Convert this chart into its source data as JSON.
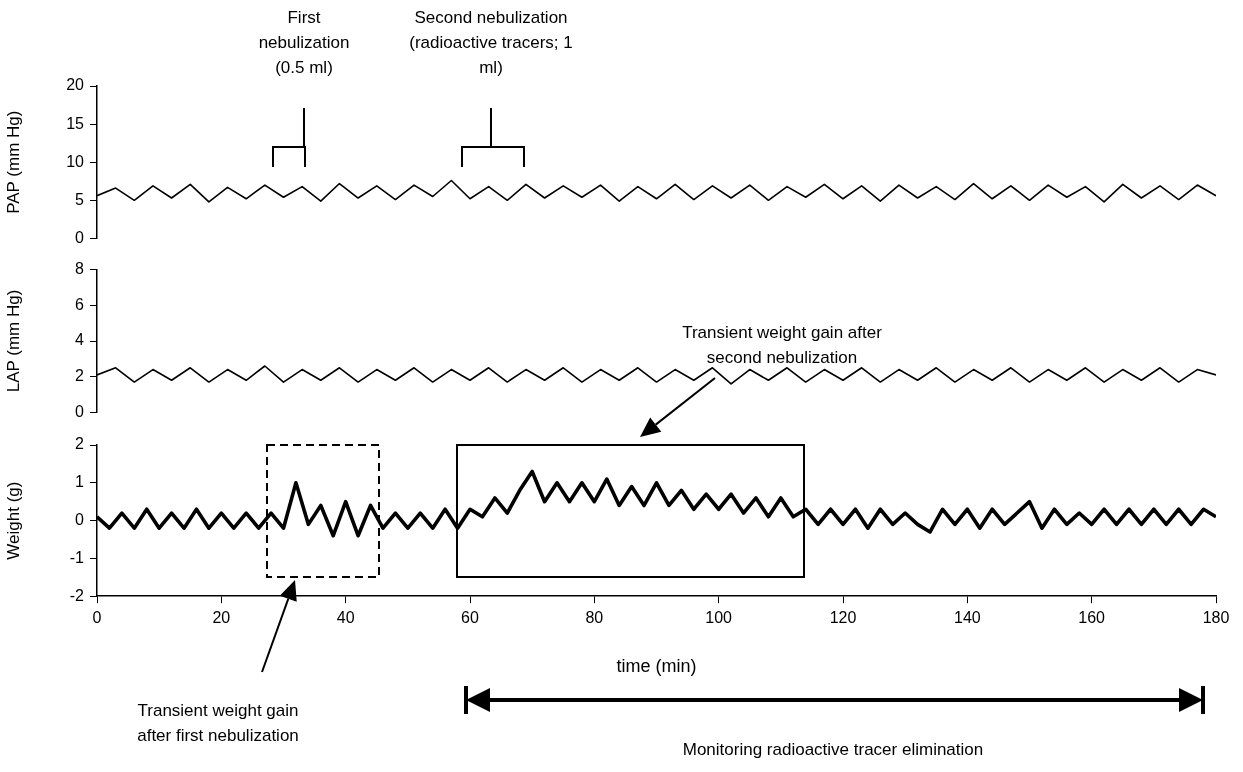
{
  "chart_data": [
    {
      "type": "line",
      "ylabel": "PAP (mm Hg)",
      "xlim": [
        0,
        180
      ],
      "ylim": [
        0,
        20
      ],
      "yticks": [
        0,
        5,
        10,
        15,
        20
      ],
      "tick_labels": "y",
      "marker": "none",
      "line_style": "solid",
      "legend": false,
      "annotations": [
        "First nebulization (0.5 ml)",
        "Second nebulization (radioactive tracers; 1 ml)"
      ],
      "x": [
        0,
        3,
        6,
        9,
        12,
        15,
        18,
        21,
        24,
        27,
        30,
        33,
        36,
        39,
        42,
        45,
        48,
        51,
        54,
        57,
        60,
        63,
        66,
        69,
        72,
        75,
        78,
        81,
        84,
        87,
        90,
        93,
        96,
        99,
        102,
        105,
        108,
        111,
        114,
        117,
        120,
        123,
        126,
        129,
        132,
        135,
        138,
        141,
        144,
        147,
        150,
        153,
        156,
        159,
        162,
        165,
        168,
        171,
        174,
        177,
        180
      ],
      "series": [
        {
          "color": "#000000",
          "values": [
            5.6,
            6.6,
            5.0,
            6.9,
            5.3,
            7.1,
            4.8,
            6.7,
            5.2,
            7.0,
            5.4,
            6.8,
            4.9,
            7.2,
            5.3,
            6.9,
            5.1,
            7.0,
            5.5,
            7.6,
            5.2,
            6.8,
            5.0,
            7.1,
            5.3,
            6.9,
            5.4,
            7.0,
            4.9,
            6.8,
            5.2,
            7.1,
            5.1,
            6.9,
            5.3,
            7.0,
            5.0,
            6.8,
            5.4,
            7.1,
            5.2,
            6.9,
            4.9,
            7.0,
            5.3,
            6.8,
            5.1,
            7.2,
            5.2,
            6.9,
            5.0,
            7.0,
            5.4,
            6.8,
            4.8,
            7.1,
            5.3,
            6.9,
            5.1,
            7.0,
            5.6
          ]
        }
      ]
    },
    {
      "type": "line",
      "ylabel": "LAP (mm Hg)",
      "xlim": [
        0,
        180
      ],
      "ylim": [
        0,
        8
      ],
      "yticks": [
        0,
        2,
        4,
        6,
        8
      ],
      "tick_labels": "y",
      "marker": "none",
      "line_style": "solid",
      "legend": false,
      "x": [
        0,
        3,
        6,
        9,
        12,
        15,
        18,
        21,
        24,
        27,
        30,
        33,
        36,
        39,
        42,
        45,
        48,
        51,
        54,
        57,
        60,
        63,
        66,
        69,
        72,
        75,
        78,
        81,
        84,
        87,
        90,
        93,
        96,
        99,
        102,
        105,
        108,
        111,
        114,
        117,
        120,
        123,
        126,
        129,
        132,
        135,
        138,
        141,
        144,
        147,
        150,
        153,
        156,
        159,
        162,
        165,
        168,
        171,
        174,
        177,
        180
      ],
      "series": [
        {
          "color": "#000000",
          "values": [
            2.1,
            2.5,
            1.7,
            2.4,
            1.8,
            2.5,
            1.7,
            2.4,
            1.8,
            2.6,
            1.7,
            2.4,
            1.8,
            2.5,
            1.7,
            2.4,
            1.8,
            2.5,
            1.7,
            2.4,
            1.8,
            2.5,
            1.7,
            2.4,
            1.8,
            2.5,
            1.7,
            2.4,
            1.8,
            2.5,
            1.7,
            2.4,
            1.8,
            2.5,
            1.6,
            2.4,
            1.8,
            2.5,
            1.7,
            2.4,
            1.8,
            2.5,
            1.7,
            2.4,
            1.8,
            2.5,
            1.7,
            2.4,
            1.8,
            2.5,
            1.7,
            2.4,
            1.8,
            2.5,
            1.7,
            2.4,
            1.8,
            2.5,
            1.7,
            2.4,
            2.1
          ]
        }
      ]
    },
    {
      "type": "line",
      "ylabel": "Weight (g)",
      "xlabel": "time (min)",
      "xlim": [
        0,
        180
      ],
      "xticks": [
        0,
        20,
        40,
        60,
        80,
        100,
        120,
        140,
        160,
        180
      ],
      "ylim": [
        -2,
        2
      ],
      "yticks": [
        -2,
        -1,
        0,
        1,
        2
      ],
      "marker": "none",
      "line_style": "solid",
      "legend": false,
      "annotations": [
        "Transient weight gain after first nebulization",
        "Transient weight gain after second nebulization",
        "Monitoring radioactive tracer elimination"
      ],
      "x": [
        0,
        2,
        4,
        6,
        8,
        10,
        12,
        14,
        16,
        18,
        20,
        22,
        24,
        26,
        28,
        30,
        32,
        34,
        36,
        38,
        40,
        42,
        44,
        46,
        48,
        50,
        52,
        54,
        56,
        58,
        60,
        62,
        64,
        66,
        68,
        70,
        72,
        74,
        76,
        78,
        80,
        82,
        84,
        86,
        88,
        90,
        92,
        94,
        96,
        98,
        100,
        102,
        104,
        106,
        108,
        110,
        112,
        114,
        116,
        118,
        120,
        122,
        124,
        126,
        128,
        130,
        132,
        134,
        136,
        138,
        140,
        142,
        144,
        146,
        148,
        150,
        152,
        154,
        156,
        158,
        160,
        162,
        164,
        166,
        168,
        170,
        172,
        174,
        176,
        178,
        180
      ],
      "series": [
        {
          "color": "#000000",
          "values": [
            0.1,
            -0.2,
            0.2,
            -0.2,
            0.3,
            -0.2,
            0.2,
            -0.2,
            0.3,
            -0.2,
            0.2,
            -0.2,
            0.2,
            -0.2,
            0.2,
            -0.2,
            1.0,
            -0.1,
            0.4,
            -0.4,
            0.5,
            -0.4,
            0.4,
            -0.2,
            0.2,
            -0.2,
            0.2,
            -0.2,
            0.3,
            -0.2,
            0.3,
            0.1,
            0.6,
            0.2,
            0.8,
            1.3,
            0.5,
            1.0,
            0.5,
            1.0,
            0.5,
            1.1,
            0.4,
            0.9,
            0.4,
            1.0,
            0.4,
            0.8,
            0.3,
            0.7,
            0.3,
            0.7,
            0.2,
            0.6,
            0.1,
            0.6,
            0.1,
            0.3,
            -0.1,
            0.3,
            -0.1,
            0.3,
            -0.2,
            0.3,
            -0.1,
            0.2,
            -0.1,
            -0.3,
            0.3,
            -0.1,
            0.3,
            -0.2,
            0.3,
            -0.1,
            0.2,
            0.5,
            -0.2,
            0.3,
            -0.1,
            0.2,
            -0.1,
            0.3,
            -0.1,
            0.3,
            -0.1,
            0.3,
            -0.1,
            0.3,
            -0.1,
            0.3,
            0.1
          ]
        }
      ]
    }
  ]
}
